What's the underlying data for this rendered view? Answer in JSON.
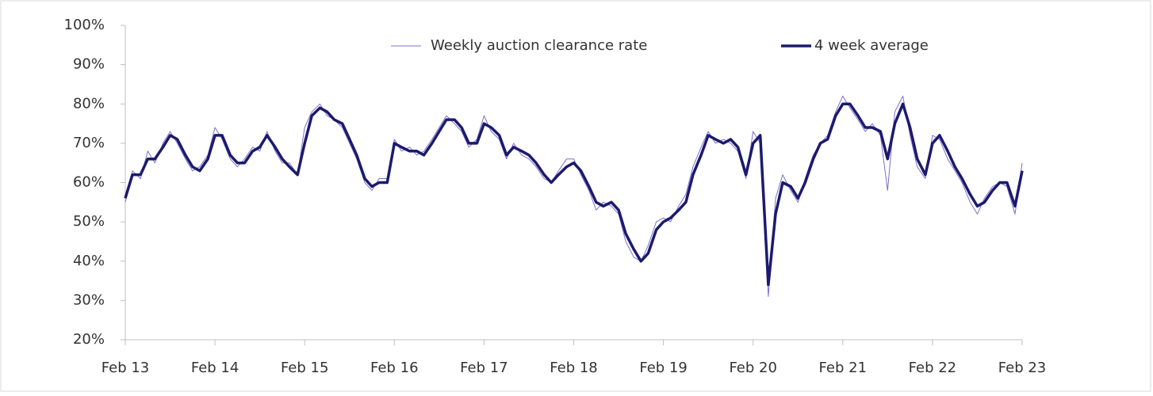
{
  "chart_data": {
    "type": "line",
    "x": [
      0,
      0.08,
      0.17,
      0.25,
      0.33,
      0.42,
      0.5,
      0.58,
      0.67,
      0.75,
      0.83,
      0.92,
      1,
      1.08,
      1.17,
      1.25,
      1.33,
      1.42,
      1.5,
      1.58,
      1.67,
      1.75,
      1.83,
      1.92,
      2,
      2.08,
      2.17,
      2.25,
      2.33,
      2.42,
      2.5,
      2.58,
      2.67,
      2.75,
      2.83,
      2.92,
      3,
      3.08,
      3.17,
      3.25,
      3.33,
      3.42,
      3.5,
      3.58,
      3.67,
      3.75,
      3.83,
      3.92,
      4,
      4.08,
      4.17,
      4.25,
      4.33,
      4.42,
      4.5,
      4.58,
      4.67,
      4.75,
      4.83,
      4.92,
      5,
      5.08,
      5.17,
      5.25,
      5.33,
      5.42,
      5.5,
      5.58,
      5.67,
      5.75,
      5.83,
      5.92,
      6,
      6.08,
      6.17,
      6.25,
      6.33,
      6.42,
      6.5,
      6.58,
      6.67,
      6.75,
      6.83,
      6.92,
      7,
      7.08,
      7.17,
      7.25,
      7.33,
      7.42,
      7.5,
      7.58,
      7.67,
      7.75,
      7.83,
      7.92,
      8,
      8.08,
      8.17,
      8.25,
      8.33,
      8.42,
      8.5,
      8.58,
      8.67,
      8.75,
      8.83,
      8.92,
      9,
      9.08,
      9.17,
      9.25,
      9.33,
      9.42,
      9.5,
      9.58,
      9.67,
      9.75,
      9.83,
      9.92,
      10
    ],
    "series": [
      {
        "name": "Weekly auction clearance rate",
        "color": "#7a70cc",
        "width": 1,
        "values": [
          55,
          63,
          61,
          68,
          65,
          70,
          73,
          70,
          66,
          63,
          64,
          67,
          74,
          71,
          66,
          64,
          66,
          69,
          68,
          73,
          68,
          65,
          65,
          62,
          74,
          78,
          80,
          77,
          76,
          74,
          70,
          66,
          60,
          58,
          61,
          61,
          71,
          68,
          69,
          67,
          68,
          71,
          74,
          77,
          75,
          73,
          69,
          71,
          77,
          73,
          71,
          66,
          70,
          67,
          66,
          64,
          61,
          60,
          63,
          66,
          66,
          62,
          58,
          53,
          55,
          54,
          52,
          45,
          41,
          40,
          44,
          50,
          51,
          50,
          54,
          57,
          64,
          69,
          73,
          70,
          71,
          70,
          68,
          61,
          73,
          70,
          31,
          56,
          62,
          58,
          55,
          61,
          67,
          70,
          72,
          78,
          82,
          79,
          76,
          73,
          75,
          72,
          58,
          78,
          82,
          72,
          64,
          61,
          72,
          71,
          66,
          63,
          60,
          55,
          52,
          56,
          59,
          60,
          59,
          52,
          65
        ]
      },
      {
        "name": "4 week average",
        "color": "#1c1a6e",
        "width": 3.5,
        "values": [
          56,
          62,
          62,
          66,
          66,
          69,
          72,
          71,
          67,
          64,
          63,
          66,
          72,
          72,
          67,
          65,
          65,
          68,
          69,
          72,
          69,
          66,
          64,
          62,
          70,
          77,
          79,
          78,
          76,
          75,
          71,
          67,
          61,
          59,
          60,
          60,
          70,
          69,
          68,
          68,
          67,
          70,
          73,
          76,
          76,
          74,
          70,
          70,
          75,
          74,
          72,
          67,
          69,
          68,
          67,
          65,
          62,
          60,
          62,
          64,
          65,
          63,
          59,
          55,
          54,
          55,
          53,
          47,
          43,
          40,
          42,
          48,
          50,
          51,
          53,
          55,
          62,
          67,
          72,
          71,
          70,
          71,
          69,
          62,
          70,
          72,
          34,
          52,
          60,
          59,
          56,
          60,
          66,
          70,
          71,
          77,
          80,
          80,
          77,
          74,
          74,
          73,
          66,
          75,
          80,
          74,
          66,
          62,
          70,
          72,
          68,
          64,
          61,
          57,
          54,
          55,
          58,
          60,
          60,
          54,
          63
        ]
      }
    ],
    "xlim": [
      0,
      10
    ],
    "xticks": [
      {
        "value": 0,
        "label": "Feb 13"
      },
      {
        "value": 1,
        "label": "Feb 14"
      },
      {
        "value": 2,
        "label": "Feb 15"
      },
      {
        "value": 3,
        "label": "Feb 16"
      },
      {
        "value": 4,
        "label": "Feb 17"
      },
      {
        "value": 5,
        "label": "Feb 18"
      },
      {
        "value": 6,
        "label": "Feb 19"
      },
      {
        "value": 7,
        "label": "Feb 20"
      },
      {
        "value": 8,
        "label": "Feb 21"
      },
      {
        "value": 9,
        "label": "Feb 22"
      },
      {
        "value": 10,
        "label": "Feb 23"
      }
    ],
    "ylim": [
      20,
      100
    ],
    "yticks": [
      {
        "value": 20,
        "label": "20%"
      },
      {
        "value": 30,
        "label": "30%"
      },
      {
        "value": 40,
        "label": "40%"
      },
      {
        "value": 50,
        "label": "50%"
      },
      {
        "value": 60,
        "label": "60%"
      },
      {
        "value": 70,
        "label": "70%"
      },
      {
        "value": 80,
        "label": "80%"
      },
      {
        "value": 90,
        "label": "90%"
      },
      {
        "value": 100,
        "label": "100%"
      }
    ],
    "grid": false,
    "legend": "top"
  }
}
